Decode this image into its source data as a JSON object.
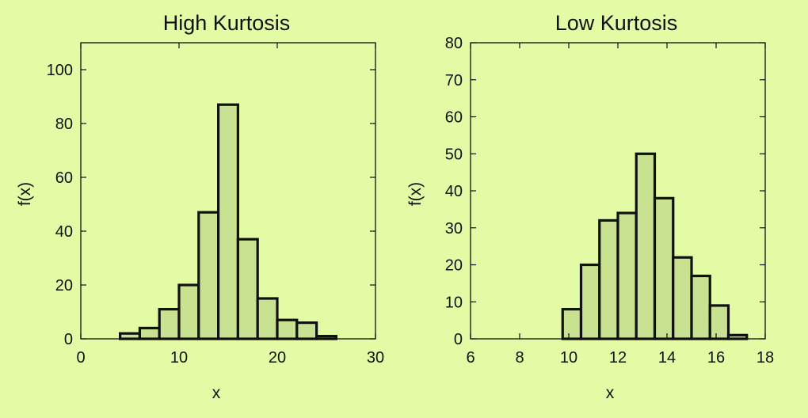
{
  "colors": {
    "background": "#e2fba4",
    "bar_fill": "#c9e292",
    "bar_stroke": "#111111"
  },
  "chart_data": [
    {
      "type": "bar",
      "title": "High Kurtosis",
      "xlabel": "x",
      "ylabel": "f(x)",
      "xlim": [
        0,
        30
      ],
      "ylim": [
        0,
        110
      ],
      "xticks": [
        0,
        10,
        20,
        30
      ],
      "yticks": [
        0,
        20,
        40,
        60,
        80,
        100
      ],
      "grid": false,
      "bin_width": 2,
      "bins": [
        {
          "x0": 4,
          "x1": 6,
          "value": 2
        },
        {
          "x0": 6,
          "x1": 8,
          "value": 4
        },
        {
          "x0": 8,
          "x1": 10,
          "value": 11
        },
        {
          "x0": 10,
          "x1": 12,
          "value": 20
        },
        {
          "x0": 12,
          "x1": 14,
          "value": 47
        },
        {
          "x0": 14,
          "x1": 16,
          "value": 87
        },
        {
          "x0": 16,
          "x1": 18,
          "value": 37
        },
        {
          "x0": 18,
          "x1": 20,
          "value": 15
        },
        {
          "x0": 20,
          "x1": 22,
          "value": 7
        },
        {
          "x0": 22,
          "x1": 24,
          "value": 6
        },
        {
          "x0": 24,
          "x1": 26,
          "value": 1
        }
      ]
    },
    {
      "type": "bar",
      "title": "Low Kurtosis",
      "xlabel": "x",
      "ylabel": "f(x)",
      "xlim": [
        6,
        18
      ],
      "ylim": [
        0,
        80
      ],
      "xticks": [
        6,
        8,
        10,
        12,
        14,
        16,
        18
      ],
      "yticks": [
        0,
        10,
        20,
        30,
        40,
        50,
        60,
        70,
        80
      ],
      "grid": false,
      "bin_width": 0.75,
      "bins": [
        {
          "x0": 9.75,
          "x1": 10.5,
          "value": 8
        },
        {
          "x0": 10.5,
          "x1": 11.25,
          "value": 20
        },
        {
          "x0": 11.25,
          "x1": 12.0,
          "value": 32
        },
        {
          "x0": 12.0,
          "x1": 12.75,
          "value": 34
        },
        {
          "x0": 12.75,
          "x1": 13.5,
          "value": 50
        },
        {
          "x0": 13.5,
          "x1": 14.25,
          "value": 38
        },
        {
          "x0": 14.25,
          "x1": 15.0,
          "value": 22
        },
        {
          "x0": 15.0,
          "x1": 15.75,
          "value": 17
        },
        {
          "x0": 15.75,
          "x1": 16.5,
          "value": 9
        },
        {
          "x0": 16.5,
          "x1": 17.25,
          "value": 1
        }
      ]
    }
  ]
}
